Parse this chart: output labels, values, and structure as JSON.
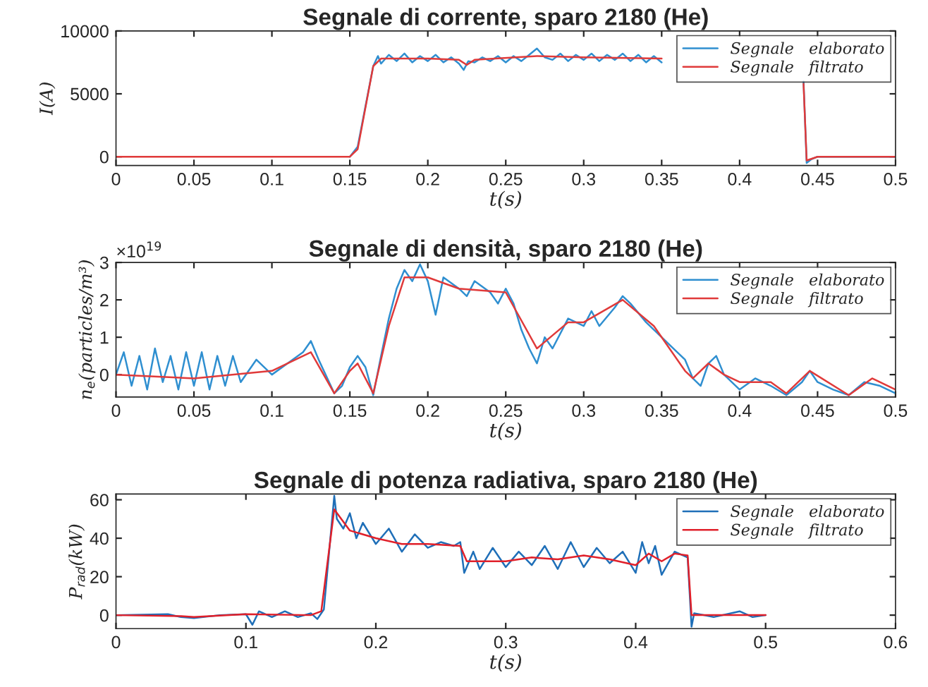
{
  "chart_data": [
    {
      "type": "line",
      "title": "Segnale di corrente, sparo 2180 (He)",
      "xlabel": "t(s)",
      "ylabel": "I(A)",
      "xlim": [
        0,
        0.5
      ],
      "xticks": [
        0,
        0.05,
        0.1,
        0.15,
        0.2,
        0.25,
        0.3,
        0.35,
        0.4,
        0.45,
        0.5
      ],
      "ylim": [
        -700,
        10000
      ],
      "yticks": [
        0,
        5000,
        10000
      ],
      "legend": "top right",
      "grid": false,
      "series": [
        {
          "name": "Segnale   elaborato",
          "color": "#2f8fd0",
          "x": [
            0.15,
            0.155,
            0.16,
            0.165,
            0.168,
            0.17,
            0.175,
            0.18,
            0.185,
            0.19,
            0.195,
            0.2,
            0.205,
            0.21,
            0.215,
            0.22,
            0.223,
            0.226,
            0.23,
            0.235,
            0.24,
            0.245,
            0.25,
            0.255,
            0.26,
            0.265,
            0.27,
            0.275,
            0.28,
            0.285,
            0.29,
            0.295,
            0.3,
            0.305,
            0.31,
            0.315,
            0.32,
            0.325,
            0.33,
            0.335,
            0.34,
            0.345,
            0.35,
            0.36,
            0.441,
            0.443,
            0.446,
            0.45,
            0.5
          ],
          "values": [
            0,
            800,
            4000,
            7200,
            8000,
            7400,
            8100,
            7600,
            8200,
            7500,
            8000,
            7600,
            8100,
            7500,
            7900,
            7400,
            6900,
            7600,
            7500,
            7900,
            7600,
            8000,
            7500,
            8000,
            7600,
            8100,
            8600,
            7900,
            7700,
            8200,
            7600,
            8100,
            7700,
            8200,
            7600,
            8100,
            7700,
            8200,
            7600,
            8100,
            7500,
            8000,
            7500,
            null,
            6000,
            -500,
            -200,
            0,
            0
          ]
        },
        {
          "name": "Segnale   filtrato",
          "color": "#e03a3a",
          "x": [
            0,
            0.15,
            0.155,
            0.165,
            0.17,
            0.2,
            0.22,
            0.225,
            0.23,
            0.27,
            0.3,
            0.35,
            0.36,
            0.441,
            0.443,
            0.45,
            0.5
          ],
          "values": [
            0,
            0,
            600,
            7200,
            7800,
            7800,
            7700,
            7300,
            7700,
            8000,
            7900,
            7800,
            null,
            5800,
            -300,
            0,
            0
          ]
        }
      ]
    },
    {
      "type": "line",
      "title": "Segnale di densità, sparo 2180 (He)",
      "xlabel": "t(s)",
      "ylabel": "n$_{e}$(particles/m³)",
      "annotations": [
        "×10$^{19}$"
      ],
      "xlim": [
        0,
        0.5
      ],
      "xticks": [
        0,
        0.05,
        0.1,
        0.15,
        0.2,
        0.25,
        0.3,
        0.35,
        0.4,
        0.45,
        0.5
      ],
      "ylim": [
        -0.6,
        3
      ],
      "yticks": [
        0,
        1,
        2,
        3
      ],
      "legend": "top right",
      "grid": false,
      "series": [
        {
          "name": "Segnale   elaborato",
          "color": "#2f8fd0",
          "x": [
            0,
            0.005,
            0.01,
            0.015,
            0.02,
            0.025,
            0.03,
            0.035,
            0.04,
            0.045,
            0.05,
            0.055,
            0.06,
            0.065,
            0.07,
            0.075,
            0.08,
            0.09,
            0.1,
            0.11,
            0.12,
            0.125,
            0.13,
            0.14,
            0.145,
            0.15,
            0.155,
            0.16,
            0.165,
            0.17,
            0.175,
            0.18,
            0.185,
            0.19,
            0.195,
            0.2,
            0.205,
            0.21,
            0.22,
            0.225,
            0.23,
            0.24,
            0.245,
            0.25,
            0.255,
            0.26,
            0.265,
            0.27,
            0.275,
            0.28,
            0.29,
            0.3,
            0.305,
            0.31,
            0.32,
            0.325,
            0.33,
            0.34,
            0.35,
            0.36,
            0.365,
            0.37,
            0.375,
            0.38,
            0.385,
            0.39,
            0.4,
            0.41,
            0.42,
            0.43,
            0.44,
            0.445,
            0.45,
            0.46,
            0.47,
            0.48,
            0.49,
            0.5
          ],
          "values": [
            0,
            0.6,
            -0.3,
            0.5,
            -0.4,
            0.7,
            -0.2,
            0.5,
            -0.4,
            0.6,
            -0.3,
            0.6,
            -0.4,
            0.5,
            -0.3,
            0.5,
            -0.2,
            0.4,
            0,
            0.3,
            0.6,
            0.9,
            0.4,
            -0.5,
            -0.3,
            0.2,
            0.5,
            0.2,
            -0.55,
            0.5,
            1.5,
            2.3,
            2.8,
            2.5,
            2.95,
            2.5,
            1.6,
            2.6,
            2.3,
            2.1,
            2.5,
            2.2,
            1.9,
            2.3,
            1.9,
            1.2,
            0.7,
            0.3,
            1.0,
            0.7,
            1.5,
            1.3,
            1.7,
            1.3,
            1.8,
            2.1,
            1.9,
            1.4,
            1.0,
            0.6,
            0.4,
            -0.1,
            -0.3,
            0.3,
            0.5,
            0,
            -0.4,
            -0.1,
            -0.3,
            -0.55,
            -0.2,
            0.1,
            -0.2,
            -0.4,
            -0.55,
            -0.2,
            -0.3,
            -0.5
          ]
        },
        {
          "name": "Segnale   filtrato",
          "color": "#e03a3a",
          "x": [
            0,
            0.05,
            0.1,
            0.125,
            0.14,
            0.15,
            0.155,
            0.165,
            0.175,
            0.185,
            0.2,
            0.22,
            0.25,
            0.27,
            0.29,
            0.3,
            0.325,
            0.345,
            0.365,
            0.37,
            0.38,
            0.39,
            0.4,
            0.42,
            0.43,
            0.445,
            0.47,
            0.485,
            0.5
          ],
          "values": [
            0,
            -0.1,
            0.1,
            0.6,
            -0.5,
            0.1,
            0.3,
            -0.5,
            1.3,
            2.6,
            2.6,
            2.3,
            2.2,
            0.7,
            1.4,
            1.4,
            2.0,
            1.3,
            0.1,
            -0.1,
            0.3,
            0,
            -0.2,
            -0.2,
            -0.5,
            0.1,
            -0.55,
            -0.1,
            -0.4
          ]
        }
      ]
    },
    {
      "type": "line",
      "title": "Segnale di potenza radiativa, sparo 2180 (He)",
      "xlabel": "t(s)",
      "ylabel": "P$_{rad}$(kW)",
      "xlim": [
        0,
        0.6
      ],
      "xticks": [
        0,
        0.1,
        0.2,
        0.3,
        0.4,
        0.5,
        0.6
      ],
      "ylim": [
        -7,
        63
      ],
      "yticks": [
        0,
        20,
        40,
        60
      ],
      "legend": "top right",
      "grid": false,
      "series": [
        {
          "name": "Segnale   elaborato",
          "color": "#1f6fb8",
          "x": [
            0,
            0.04,
            0.05,
            0.06,
            0.08,
            0.1,
            0.105,
            0.11,
            0.12,
            0.13,
            0.14,
            0.15,
            0.155,
            0.16,
            0.165,
            0.168,
            0.17,
            0.175,
            0.18,
            0.185,
            0.19,
            0.2,
            0.21,
            0.22,
            0.23,
            0.24,
            0.25,
            0.26,
            0.265,
            0.268,
            0.275,
            0.28,
            0.29,
            0.3,
            0.31,
            0.32,
            0.33,
            0.34,
            0.35,
            0.36,
            0.37,
            0.38,
            0.39,
            0.4,
            0.405,
            0.41,
            0.415,
            0.42,
            0.43,
            0.44,
            0.443,
            0.445,
            0.46,
            0.48,
            0.49,
            0.5
          ],
          "values": [
            0,
            0.5,
            -1,
            -1.5,
            0,
            0.5,
            -5,
            2,
            -1,
            2,
            -1,
            1,
            -2,
            3,
            40,
            62,
            50,
            45,
            53,
            40,
            48,
            37,
            45,
            33,
            42,
            35,
            38,
            36,
            38,
            22,
            33,
            24,
            35,
            25,
            33,
            26,
            36,
            24,
            38,
            25,
            35,
            27,
            33,
            22,
            38,
            27,
            36,
            21,
            33,
            30,
            -6,
            1,
            -1,
            2,
            -1,
            0
          ]
        },
        {
          "name": "Segnale   filtrato",
          "color": "#e0202a",
          "x": [
            0,
            0.05,
            0.06,
            0.1,
            0.15,
            0.158,
            0.168,
            0.18,
            0.2,
            0.22,
            0.24,
            0.265,
            0.27,
            0.3,
            0.32,
            0.34,
            0.36,
            0.38,
            0.4,
            0.41,
            0.42,
            0.43,
            0.44,
            0.443,
            0.46,
            0.5
          ],
          "values": [
            0,
            -0.5,
            -1,
            0.5,
            0,
            2,
            55,
            44,
            40,
            37,
            37,
            36,
            28,
            28,
            30,
            29,
            31,
            29,
            26,
            32,
            28,
            32,
            31,
            0,
            0,
            0
          ]
        }
      ]
    }
  ]
}
